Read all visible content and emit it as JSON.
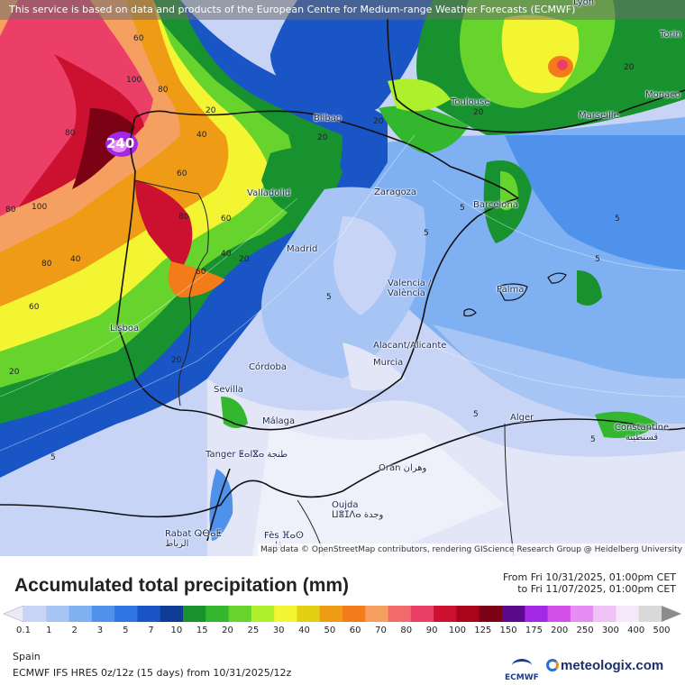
{
  "banner": "This service is based on data and products of the European Centre for Medium-range Weather Forecasts (ECMWF)",
  "attribution": "Map data © OpenStreetMap contributors, rendering GIScience Research Group @ Heidelberg University",
  "cities": [
    {
      "id": "lyon",
      "label": "Lyon"
    },
    {
      "id": "torino",
      "label": "Torin"
    },
    {
      "id": "toulouse",
      "label": "Toulouse"
    },
    {
      "id": "monaco",
      "label": "Monaco"
    },
    {
      "id": "marseille",
      "label": "Marseille"
    },
    {
      "id": "bilbao",
      "label": "Bilbao"
    },
    {
      "id": "valladolid",
      "label": "Valladolid"
    },
    {
      "id": "zaragoza",
      "label": "Zaragoza"
    },
    {
      "id": "barcelona",
      "label": "Barcelona"
    },
    {
      "id": "madrid",
      "label": "Madrid"
    },
    {
      "id": "valencia",
      "label": "Valencia / València"
    },
    {
      "id": "palma",
      "label": "Palma"
    },
    {
      "id": "lisboa",
      "label": "Lisboa"
    },
    {
      "id": "alicante",
      "label": "Alacant/Alicante"
    },
    {
      "id": "murcia",
      "label": "Murcia"
    },
    {
      "id": "cordoba",
      "label": "Córdoba"
    },
    {
      "id": "sevilla",
      "label": "Sevilla"
    },
    {
      "id": "malaga",
      "label": "Málaga"
    },
    {
      "id": "alger",
      "label": "Alger"
    },
    {
      "id": "constantine",
      "label": "Constantine قسنطينة"
    },
    {
      "id": "tanger",
      "label": "Tanger ⵟⴰⵏⴵⴰ طنجة"
    },
    {
      "id": "oran",
      "label": "Oran وهران"
    },
    {
      "id": "oujda",
      "label": "Oujda ⵡⴻⵊⴷⴰ وجدة"
    },
    {
      "id": "rabat",
      "label": "Rabat ⵕⴱⴰⵟ الرباط"
    },
    {
      "id": "fes",
      "label": "Fès ⴼⴰⵙ فاس"
    }
  ],
  "contour_labels": {
    "max_value": "240",
    "values": [
      "20",
      "40",
      "60",
      "80",
      "100",
      "5"
    ]
  },
  "legend": {
    "title": "Accumulated total precipitation (mm)",
    "period_from": "From Fri 10/31/2025, 01:00pm CET",
    "period_to": "to Fri 11/07/2025, 01:00pm CET",
    "ticks": [
      "0.1",
      "1",
      "2",
      "3",
      "5",
      "7",
      "10",
      "15",
      "20",
      "25",
      "30",
      "40",
      "50",
      "60",
      "70",
      "80",
      "90",
      "100",
      "125",
      "150",
      "175",
      "200",
      "250",
      "300",
      "400",
      "500"
    ],
    "colors": [
      "#e9eaf8",
      "#c8d4f6",
      "#a6c4f4",
      "#7fb0f2",
      "#4f92ec",
      "#2f74e0",
      "#1a55c6",
      "#0f3d96",
      "#18922e",
      "#33b72f",
      "#66d42c",
      "#aef02c",
      "#f3f532",
      "#e3cf14",
      "#ef9b16",
      "#f47b1a",
      "#f5a060",
      "#f26a6a",
      "#ec3f68",
      "#cc1130",
      "#a8051b",
      "#7a0214",
      "#5a0a8a",
      "#a228e6",
      "#d24fe8",
      "#e68cf2",
      "#f1c2f5",
      "#f6e8fa",
      "#d9d9d9",
      "#8c8c8c"
    ]
  },
  "footer": {
    "region": "Spain",
    "model": "ECMWF IFS HRES 0z/12z (15 days) from 10/31/2025/12z",
    "ecmwf": "ECMWF",
    "brand": "meteologix.com"
  }
}
